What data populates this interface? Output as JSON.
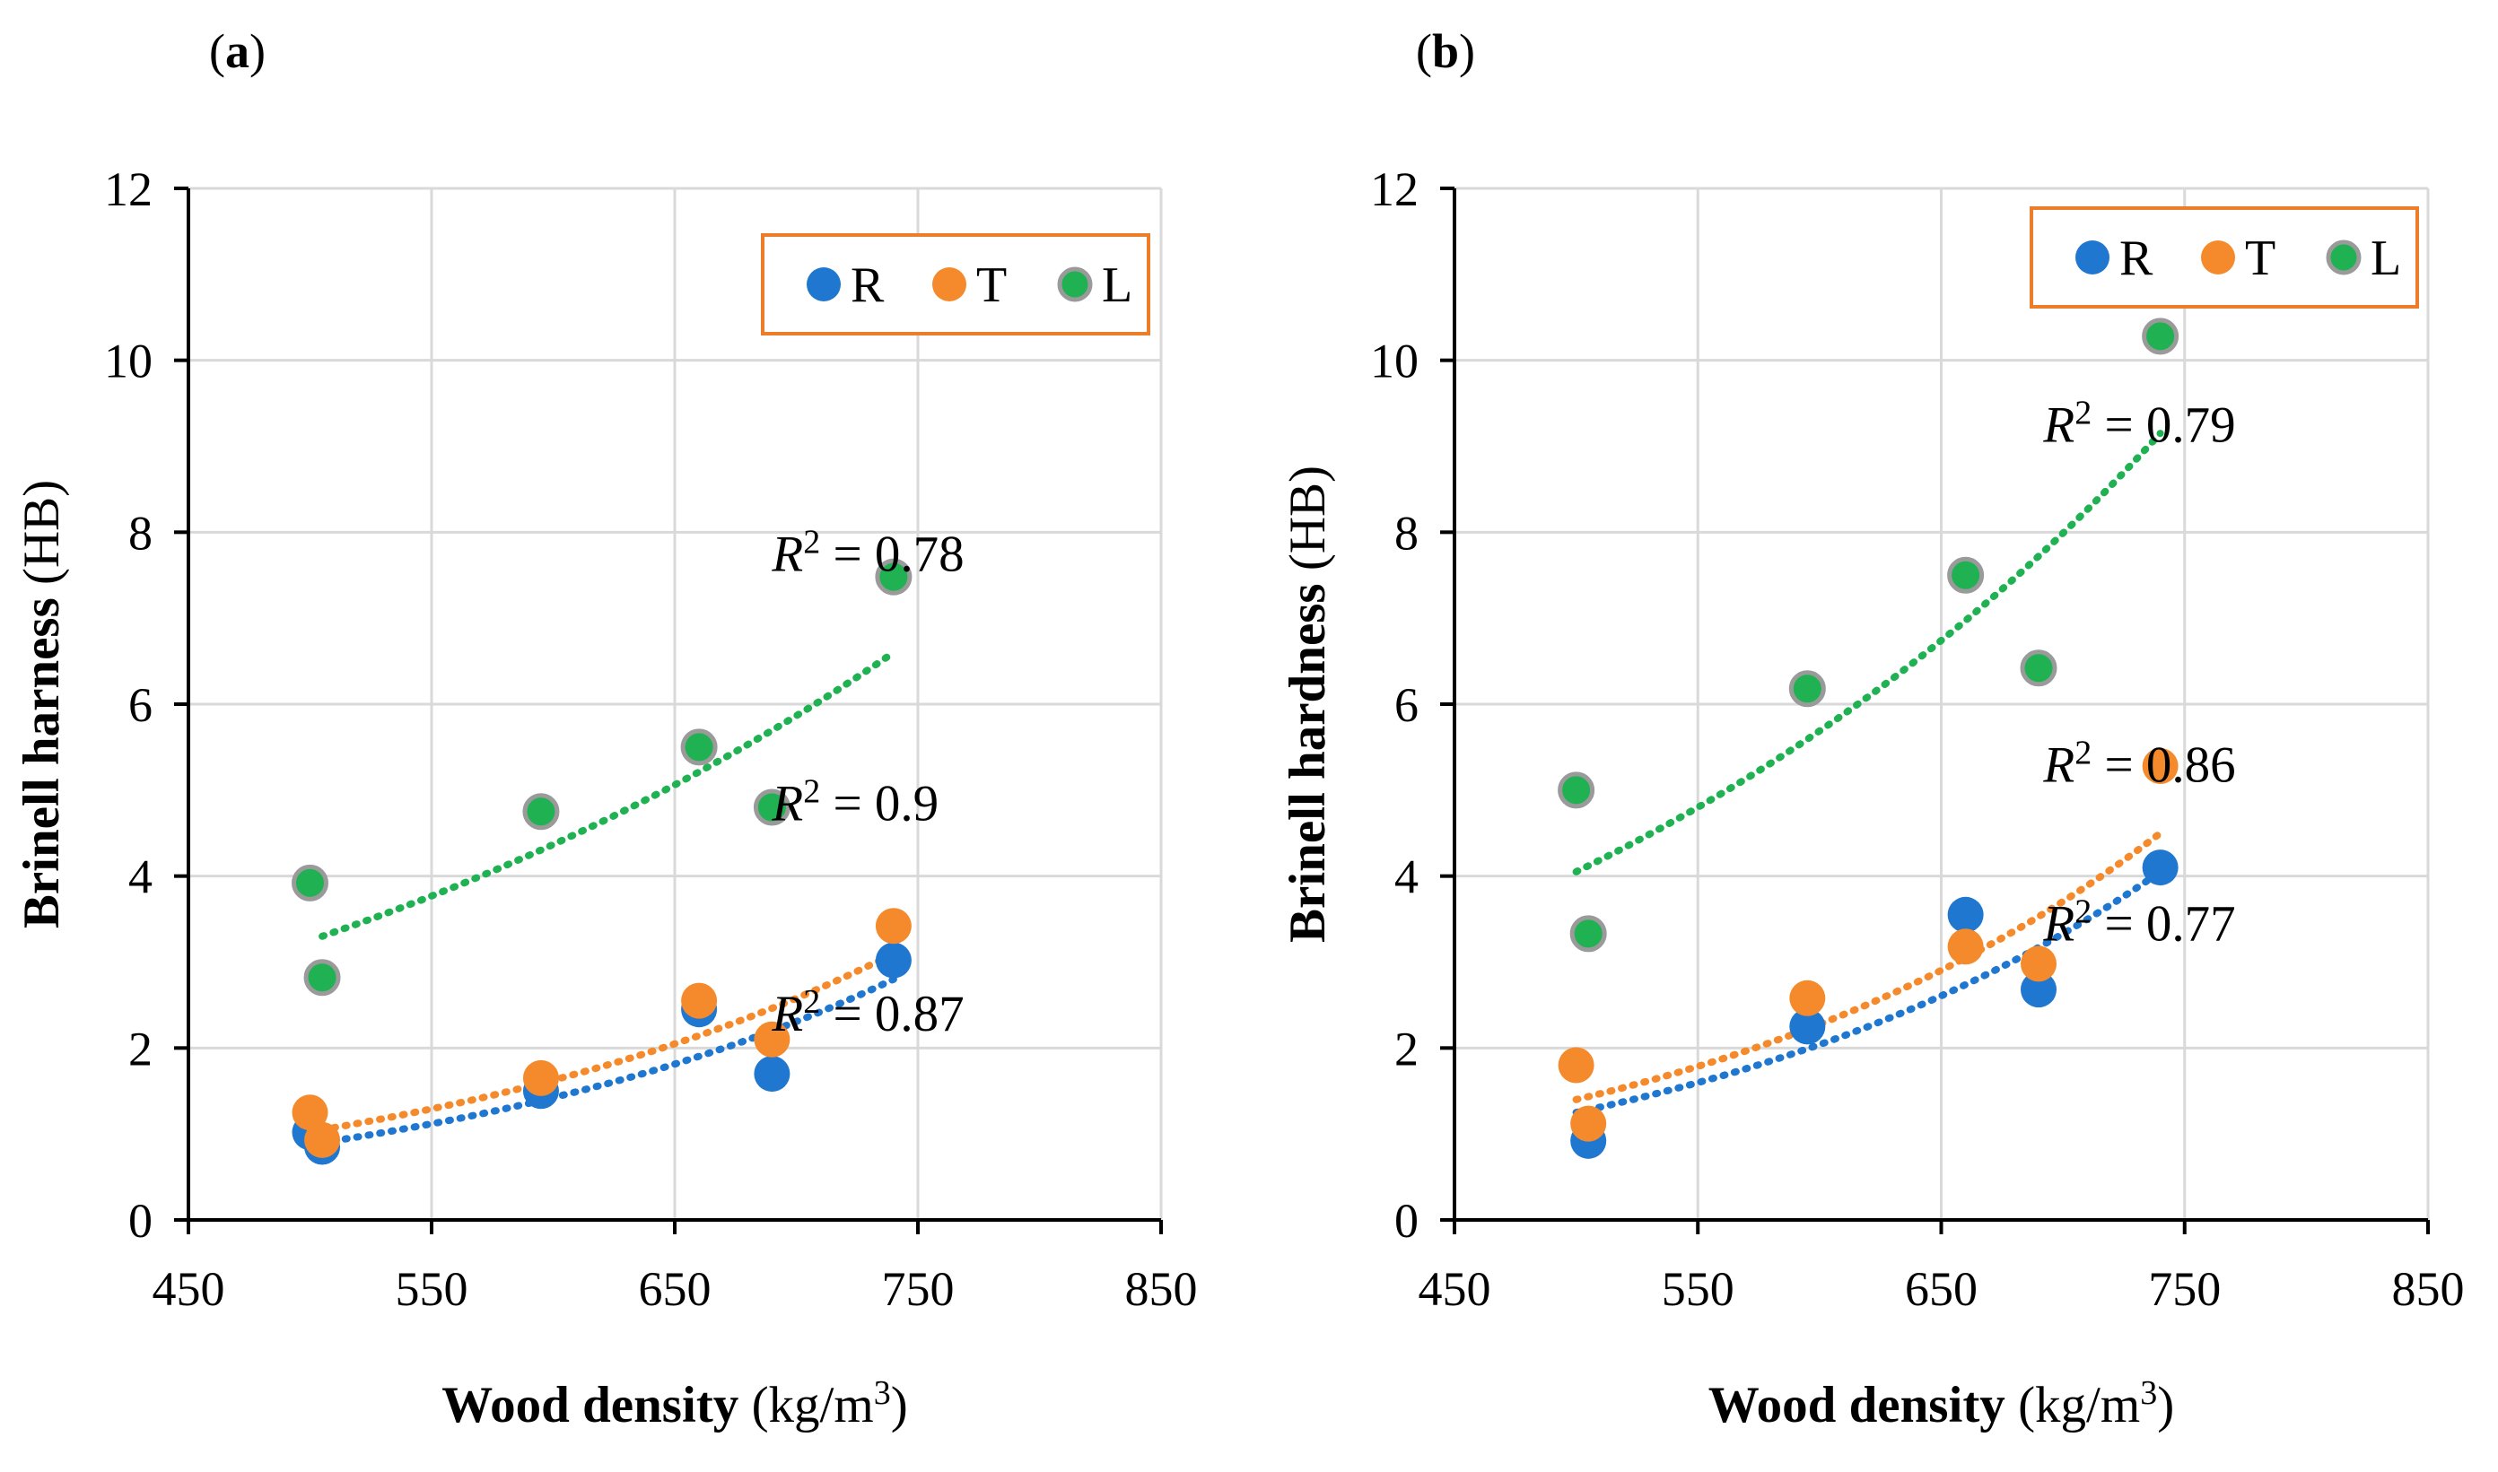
{
  "figure": {
    "panel_labels": [
      "a",
      "b"
    ]
  },
  "colors": {
    "R": "#1f77cf",
    "T": "#f58a2c",
    "L": "#1fb152",
    "legend_border": "#ec7d2b",
    "grid": "#d9d9d9"
  },
  "chart_data": [
    {
      "panel": "(a)",
      "type": "scatter",
      "title": "",
      "xlabel_bold": "Wood density",
      "xlabel_units_prefix": " (kg/m",
      "xlabel_units_sup": "3",
      "xlabel_units_suffix": ")",
      "ylabel_bold": "Brinell harness",
      "ylabel_units": " (HB)",
      "xlim": [
        450,
        850
      ],
      "ylim": [
        0,
        12
      ],
      "xticks": [
        450,
        550,
        650,
        750,
        850
      ],
      "yticks": [
        0,
        2,
        4,
        6,
        8,
        10,
        12
      ],
      "grid": true,
      "legend": {
        "position": "top-right",
        "entries": [
          "R",
          "T",
          "L"
        ]
      },
      "series": [
        {
          "name": "R",
          "x": [
            500,
            505,
            595,
            660,
            690,
            740
          ],
          "y": [
            1.02,
            0.85,
            1.5,
            2.45,
            1.7,
            3.02
          ],
          "trend": {
            "x": [
              505,
              740
            ],
            "y": [
              0.9,
              2.8
            ]
          }
        },
        {
          "name": "T",
          "x": [
            500,
            505,
            595,
            660,
            690,
            740
          ],
          "y": [
            1.25,
            0.93,
            1.65,
            2.55,
            2.1,
            3.42
          ],
          "trend": {
            "x": [
              505,
              740
            ],
            "y": [
              1.05,
              3.1
            ]
          }
        },
        {
          "name": "L",
          "x": [
            500,
            505,
            595,
            660,
            690,
            740
          ],
          "y": [
            3.92,
            2.82,
            4.75,
            5.5,
            4.8,
            7.48
          ],
          "trend": {
            "x": [
              505,
              740
            ],
            "y": [
              3.3,
              6.6
            ]
          }
        }
      ],
      "annotations": [
        {
          "prefix": "R",
          "sup": "2",
          "suffix": " = 0.78",
          "x": 690,
          "y": 7.55
        },
        {
          "prefix": "R",
          "sup": "2",
          "suffix": " = 0.9",
          "x": 690,
          "y": 4.65
        },
        {
          "prefix": "R",
          "sup": "2",
          "suffix": " = 0.87",
          "x": 690,
          "y": 2.2
        }
      ]
    },
    {
      "panel": "(b)",
      "type": "scatter",
      "title": "",
      "xlabel_bold": "Wood density",
      "xlabel_units_prefix": " (kg/m",
      "xlabel_units_sup": "3",
      "xlabel_units_suffix": ")",
      "ylabel_bold": "Brinell hardness",
      "ylabel_units": " (HB)",
      "xlim": [
        450,
        850
      ],
      "ylim": [
        0,
        12
      ],
      "xticks": [
        450,
        550,
        650,
        750,
        850
      ],
      "yticks": [
        0,
        2,
        4,
        6,
        8,
        10,
        12
      ],
      "grid": true,
      "legend": {
        "position": "top-right",
        "entries": [
          "R",
          "T",
          "L"
        ]
      },
      "series": [
        {
          "name": "R",
          "x": [
            505,
            595,
            660,
            690,
            740
          ],
          "y": [
            0.92,
            2.25,
            3.55,
            2.68,
            4.1
          ],
          "trend": {
            "x": [
              500,
              740
            ],
            "y": [
              1.25,
              4.05
            ]
          }
        },
        {
          "name": "T",
          "x": [
            500,
            505,
            595,
            660,
            690,
            740
          ],
          "y": [
            1.8,
            1.12,
            2.58,
            3.18,
            2.98,
            5.28
          ],
          "trend": {
            "x": [
              500,
              740
            ],
            "y": [
              1.4,
              4.5
            ]
          }
        },
        {
          "name": "L",
          "x": [
            500,
            505,
            595,
            660,
            690,
            740
          ],
          "y": [
            5.0,
            3.33,
            6.18,
            7.5,
            6.42,
            10.28
          ],
          "trend": {
            "x": [
              500,
              740
            ],
            "y": [
              4.05,
              9.15
            ]
          }
        }
      ],
      "annotations": [
        {
          "prefix": "R",
          "sup": "2",
          "suffix": " = 0.79",
          "x": 692,
          "y": 9.05
        },
        {
          "prefix": "R",
          "sup": "2",
          "suffix": " = 0.86",
          "x": 692,
          "y": 5.1
        },
        {
          "prefix": "R",
          "sup": "2",
          "suffix": " = 0.77",
          "x": 692,
          "y": 3.25
        }
      ]
    }
  ]
}
